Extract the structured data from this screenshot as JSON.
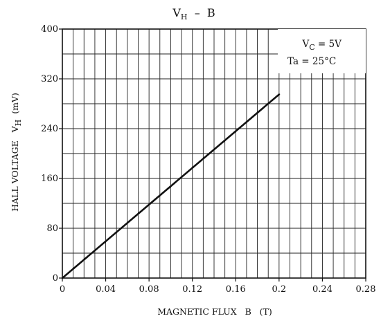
{
  "chart_data": {
    "type": "line",
    "title": {
      "main": "V",
      "sub": "H",
      "rest": "  –  B"
    },
    "xlabel": "MAGNETIC FLUX   B   (T)",
    "ylabel": {
      "main": "HALL VOLTAGE   V",
      "sub": "H",
      "unit": "(mV)"
    },
    "xlim": [
      0,
      0.28
    ],
    "ylim": [
      0,
      400
    ],
    "x_ticks": [
      "0",
      "0.04",
      "0.08",
      "0.12",
      "0.16",
      "0.2",
      "0.24",
      "0.28"
    ],
    "y_ticks": [
      "0",
      "80",
      "160",
      "240",
      "320",
      "400"
    ],
    "grid": true,
    "legend_placement": "top-right",
    "annotations": [
      {
        "main": "V",
        "sub": "C",
        "rest": " = 5V"
      },
      {
        "main": "Ta = 25°C",
        "sub": "",
        "rest": ""
      }
    ],
    "series": [
      {
        "x": [
          0,
          0.2
        ],
        "y": [
          0,
          295
        ]
      }
    ],
    "colors": {
      "line": "#111111",
      "grid": "#222222",
      "background": "#ffffff"
    }
  }
}
